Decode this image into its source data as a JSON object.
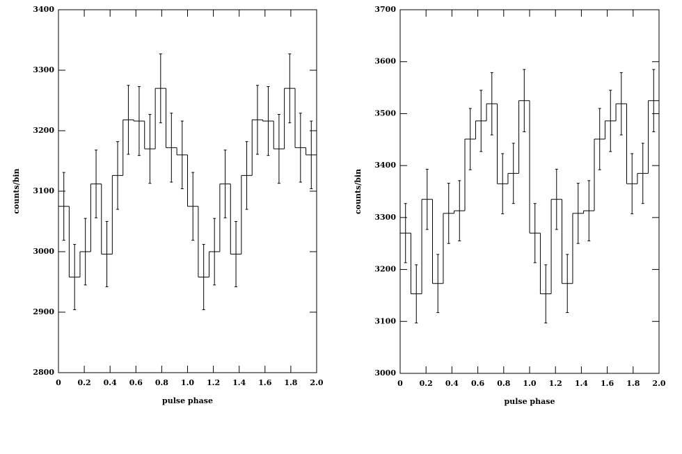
{
  "chart_data": [
    {
      "type": "histogram",
      "x_label": "pulse phase",
      "y_label": "counts/bin",
      "bins": [
        0,
        0.083,
        0.167,
        0.25,
        0.333,
        0.417,
        0.5,
        0.583,
        0.667,
        0.75,
        0.833,
        0.917,
        1,
        1.083,
        1.167,
        1.25,
        1.333,
        1.417,
        1.5,
        1.583,
        1.667,
        1.75,
        1.833,
        1.917,
        2
      ],
      "values": [
        3075,
        2958,
        3000,
        3112,
        2996,
        3126,
        3218,
        3216,
        3170,
        3270,
        3172,
        3160,
        3075,
        2958,
        3000,
        3112,
        2996,
        3126,
        3218,
        3216,
        3170,
        3270,
        3172,
        3160
      ],
      "errors": [
        56,
        54,
        55,
        56,
        54,
        56,
        57,
        57,
        57,
        57,
        57,
        56,
        56,
        54,
        55,
        56,
        54,
        56,
        57,
        57,
        57,
        57,
        57,
        56
      ],
      "color": "#000000",
      "xlim": [
        0,
        2
      ],
      "xticks": [
        0,
        0.2,
        0.4,
        0.6,
        0.8,
        {
          "value": 1,
          "label": "1.0"
        },
        1.2,
        1.4,
        1.6,
        1.8,
        {
          "value": 2,
          "label": "2.0"
        }
      ],
      "ylim": [
        2800,
        3400
      ],
      "yticks": [
        2800,
        2900,
        3000,
        3100,
        3200,
        3300,
        3400
      ]
    },
    {
      "type": "histogram",
      "x_label": "pulse phase",
      "y_label": "counts/bin",
      "bins": [
        0,
        0.083,
        0.167,
        0.25,
        0.333,
        0.417,
        0.5,
        0.583,
        0.667,
        0.75,
        0.833,
        0.917,
        1,
        1.083,
        1.167,
        1.25,
        1.333,
        1.417,
        1.5,
        1.583,
        1.667,
        1.75,
        1.833,
        1.917,
        2
      ],
      "values": [
        3270,
        3153,
        3335,
        3173,
        3308,
        3313,
        3451,
        3486,
        3519,
        3365,
        3385,
        3525,
        3270,
        3153,
        3335,
        3173,
        3308,
        3313,
        3451,
        3486,
        3519,
        3365,
        3385,
        3525
      ],
      "errors": [
        57,
        56,
        58,
        56,
        58,
        58,
        59,
        59,
        60,
        58,
        58,
        60,
        57,
        56,
        58,
        56,
        58,
        58,
        59,
        59,
        60,
        58,
        58,
        60
      ],
      "color": "#000000",
      "xlim": [
        0,
        2
      ],
      "xticks": [
        0,
        0.2,
        0.4,
        0.6,
        0.8,
        {
          "value": 1,
          "label": "1.0"
        },
        1.2,
        1.4,
        1.6,
        1.8,
        {
          "value": 2,
          "label": "2.0"
        }
      ],
      "ylim": [
        3000,
        3700
      ],
      "yticks": [
        3000,
        3100,
        3200,
        3300,
        3400,
        3500,
        3600,
        3700
      ]
    }
  ]
}
